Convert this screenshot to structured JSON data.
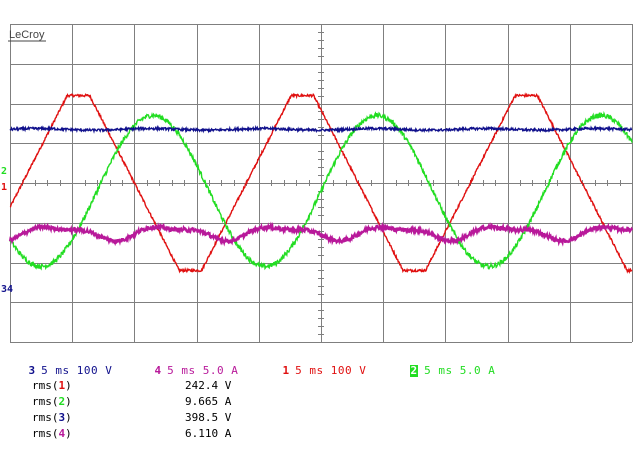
{
  "brand": "LeCroy",
  "colors": {
    "background": "#ffffff",
    "grid": "#7f7f7f",
    "ch1": "#e01010",
    "ch2": "#22dd22",
    "ch3": "#10108c",
    "ch4": "#b8199a"
  },
  "screen": {
    "divisions_x": 10,
    "divisions_y": 8,
    "ground_markers": [
      {
        "label": "2",
        "color": "#22dd22"
      },
      {
        "label": "1",
        "color": "#e01010"
      },
      {
        "label": "34",
        "color": "#10108c"
      }
    ]
  },
  "chart_data": {
    "type": "line",
    "x": {
      "unit": "div",
      "range": [
        0,
        10
      ]
    },
    "y": {
      "unit": "div",
      "range": [
        -4,
        4
      ]
    },
    "series": [
      {
        "name": "1",
        "color": "#e01010",
        "amplitude_div": 2.2,
        "offset_div": 0,
        "period_div": 3.6,
        "phase_div": 0.2,
        "flat_top": true,
        "noise_div": 0.03
      },
      {
        "name": "2",
        "color": "#22dd22",
        "amplitude_div": 1.9,
        "offset_div": -0.2,
        "period_div": 3.6,
        "phase_div": 1.4,
        "flat_top": false,
        "noise_div": 0.06
      },
      {
        "name": "3",
        "color": "#10108c",
        "amplitude_div": 0.02,
        "offset_div": 1.35,
        "period_div": 1.8,
        "phase_div": 0,
        "flat_top": false,
        "noise_div": 0.03
      },
      {
        "name": "4",
        "color": "#b8199a",
        "amplitude_div": 0.15,
        "offset_div": -1.25,
        "period_div": 1.8,
        "phase_div": 0.3,
        "flat_top": false,
        "noise_div": 0.05
      }
    ]
  },
  "status": {
    "ch3": {
      "num": "3",
      "text": "5 ms 100 V"
    },
    "ch4": {
      "num": "4",
      "text": "5 ms 5.0 A"
    },
    "ch1": {
      "num": "1",
      "text": "5 ms 100 V"
    },
    "ch2": {
      "num": "2",
      "text": "5 ms 5.0 A"
    }
  },
  "measurements": [
    {
      "func": "rms",
      "ch": "1",
      "value": "242.4 V"
    },
    {
      "func": "rms",
      "ch": "2",
      "value": "9.665 A"
    },
    {
      "func": "rms",
      "ch": "3",
      "value": "398.5 V"
    },
    {
      "func": "rms",
      "ch": "4",
      "value": "6.110 A"
    }
  ]
}
